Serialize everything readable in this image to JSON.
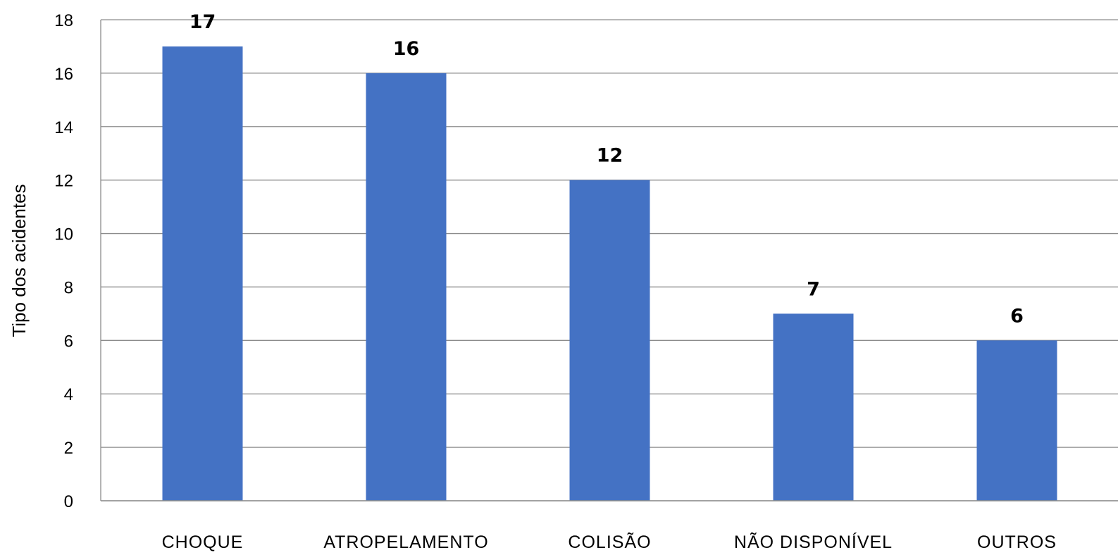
{
  "chart_data": {
    "type": "bar",
    "categories": [
      "CHOQUE",
      "ATROPELAMENTO",
      "COLISÃO",
      "NÃO DISPONÍVEL",
      "OUTROS"
    ],
    "values": [
      17,
      16,
      12,
      7,
      6
    ],
    "title": "",
    "xlabel": "",
    "ylabel": "Tipo dos acidentes",
    "ylim": [
      0,
      18
    ],
    "yticks": [
      0,
      2,
      4,
      6,
      8,
      10,
      12,
      14,
      16,
      18
    ],
    "grid": true,
    "legend": "none",
    "data_labels": true,
    "colors": {
      "bar": "#4472C4",
      "grid": "#8C8C8C",
      "text": "#000000"
    }
  }
}
